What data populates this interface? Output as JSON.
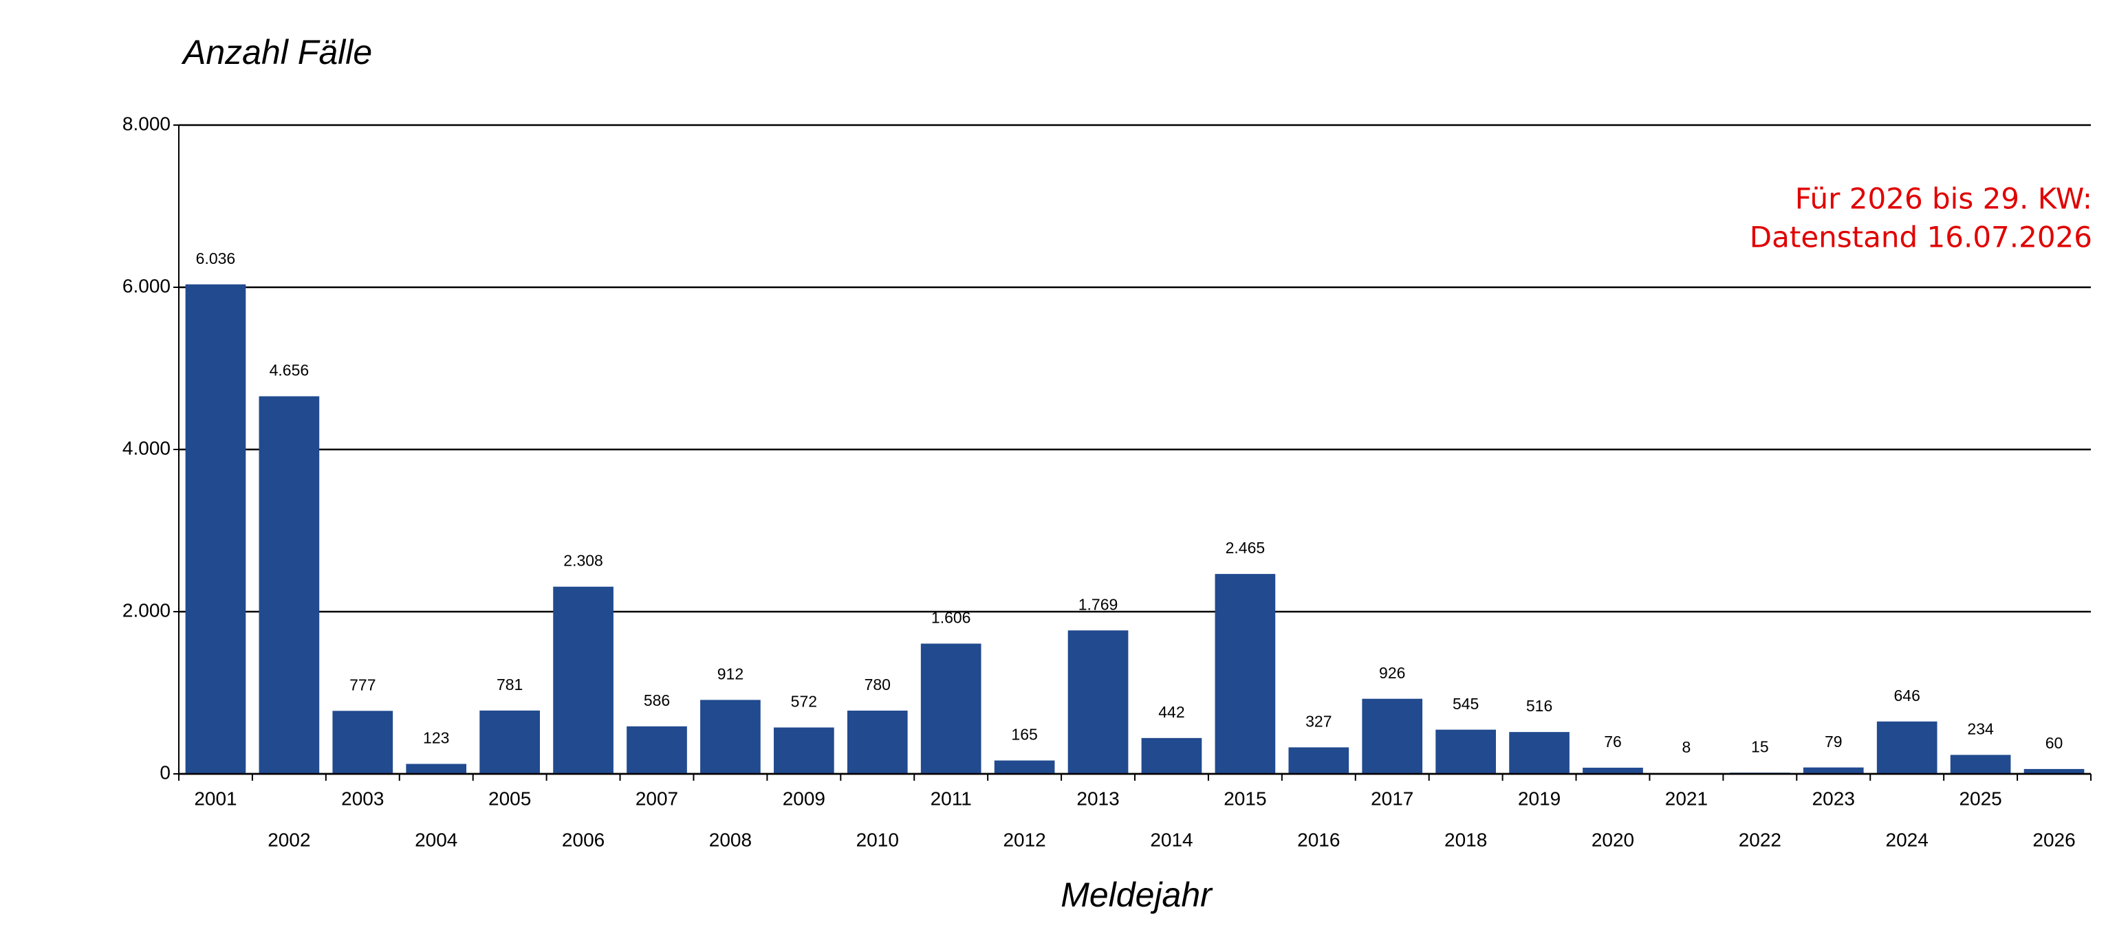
{
  "chart_data": {
    "type": "bar",
    "title": "Anzahl Fälle",
    "x_label": "Meldejahr",
    "annotations": [
      "Für 2026 bis 29. KW:",
      "Datenstand 16.07.2026"
    ],
    "categories": [
      "2001",
      "2002",
      "2003",
      "2004",
      "2005",
      "2006",
      "2007",
      "2008",
      "2009",
      "2010",
      "2011",
      "2012",
      "2013",
      "2014",
      "2015",
      "2016",
      "2017",
      "2018",
      "2019",
      "2020",
      "2021",
      "2022",
      "2023",
      "2024",
      "2025",
      "2026"
    ],
    "values": [
      6036,
      4656,
      777,
      123,
      781,
      2308,
      586,
      912,
      572,
      780,
      1606,
      165,
      1769,
      442,
      2465,
      327,
      926,
      545,
      516,
      76,
      8,
      15,
      79,
      646,
      234,
      60
    ],
    "value_labels": [
      "6.036",
      "4.656",
      "777",
      "123",
      "781",
      "2.308",
      "586",
      "912",
      "572",
      "780",
      "1.606",
      "165",
      "1.769",
      "442",
      "2.465",
      "327",
      "926",
      "545",
      "516",
      "76",
      "8",
      "15",
      "79",
      "646",
      "234",
      "60"
    ],
    "color": "#214a8f",
    "ylim": [
      0,
      8000
    ],
    "yticks": [
      0,
      {
        "value": 2000,
        "label": "2.000"
      },
      {
        "value": 4000,
        "label": "4.000"
      },
      {
        "value": 6000,
        "label": "6.000"
      },
      {
        "value": 8000,
        "label": "8.000"
      }
    ],
    "grid": true
  }
}
